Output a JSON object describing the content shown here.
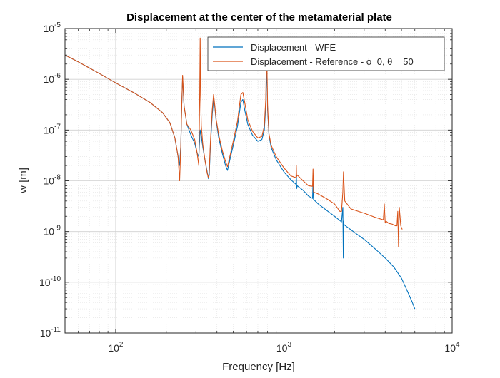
{
  "chart_data": {
    "type": "line",
    "title": "Displacement at the center of the metamaterial plate",
    "xlabel": "Frequency [Hz]",
    "ylabel": "w [m]",
    "xscale": "log",
    "yscale": "log",
    "xlim": [
      50,
      10000
    ],
    "ylim": [
      1e-11,
      1e-05
    ],
    "grid": true,
    "minor_grid": true,
    "legend_position": "top-right",
    "x_ticks": [
      {
        "value": 100,
        "base": "10",
        "exp": "2"
      },
      {
        "value": 1000,
        "base": "10",
        "exp": "3"
      },
      {
        "value": 10000,
        "base": "10",
        "exp": "4"
      }
    ],
    "y_ticks": [
      {
        "value": 1e-11,
        "base": "10",
        "exp": "-11"
      },
      {
        "value": 1e-10,
        "base": "10",
        "exp": "-10"
      },
      {
        "value": 1e-09,
        "base": "10",
        "exp": "-9"
      },
      {
        "value": 1e-08,
        "base": "10",
        "exp": "-8"
      },
      {
        "value": 1e-07,
        "base": "10",
        "exp": "-7"
      },
      {
        "value": 1e-06,
        "base": "10",
        "exp": "-6"
      },
      {
        "value": 1e-05,
        "base": "10",
        "exp": "-5"
      }
    ],
    "series": [
      {
        "name": "Displacement - WFE",
        "color": "#0072BD",
        "x": [
          50,
          60,
          80,
          100,
          130,
          160,
          190,
          210,
          225,
          235,
          240,
          244,
          247,
          250,
          255,
          265,
          280,
          295,
          305,
          312,
          318,
          322,
          330,
          340,
          350,
          356,
          360,
          366,
          375,
          382,
          388,
          395,
          410,
          430,
          450,
          462,
          475,
          500,
          530,
          555,
          570,
          585,
          610,
          650,
          700,
          740,
          765,
          780,
          790,
          800,
          815,
          840,
          900,
          1000,
          1100,
          1180,
          1185,
          1190,
          1200,
          1300,
          1400,
          1480,
          1490,
          1500,
          1600,
          1800,
          2000,
          2200,
          2240,
          2255,
          2262,
          2270,
          2290,
          2400,
          2700,
          3000,
          3500,
          4000,
          4500,
          5000,
          5500,
          5800,
          6000
        ],
        "y": [
          3e-06,
          2.2e-06,
          1.3e-06,
          8.5e-07,
          5.3e-07,
          3.5e-07,
          2.2e-07,
          1.4e-07,
          7e-08,
          3e-08,
          2e-08,
          5e-08,
          3e-07,
          1.1e-06,
          3e-07,
          1.3e-07,
          8e-08,
          5.5e-08,
          3.5e-08,
          3e-08,
          1e-07,
          8e-08,
          4.5e-08,
          2.5e-08,
          1.5e-08,
          1.1e-08,
          1.3e-08,
          5e-08,
          2e-07,
          4e-07,
          3e-07,
          1.6e-07,
          7e-08,
          3.5e-08,
          2e-08,
          1.6e-08,
          2.4e-08,
          5e-08,
          1.2e-07,
          3.5e-07,
          4e-07,
          2.5e-07,
          1.3e-07,
          8e-08,
          6e-08,
          6.5e-08,
          1e-07,
          3e-07,
          2e-06,
          2.5e-07,
          8e-08,
          4.5e-08,
          2.6e-08,
          1.5e-08,
          1.05e-08,
          8.5e-09,
          1.8e-08,
          7e-09,
          8e-09,
          6.5e-09,
          5e-09,
          4.5e-09,
          1e-08,
          4.3e-09,
          3.5e-09,
          2.6e-09,
          2e-09,
          1.55e-09,
          3e-09,
          3e-10,
          1.6e-09,
          1.4e-09,
          1.35e-09,
          1.2e-09,
          9e-10,
          7e-10,
          4.5e-10,
          3e-10,
          2e-10,
          1.2e-10,
          6e-11,
          4e-11,
          3e-11
        ]
      },
      {
        "name": "Displacement - Reference - ϕ=0, θ = 50",
        "color": "#D95319",
        "x": [
          50,
          60,
          80,
          100,
          130,
          160,
          190,
          210,
          225,
          235,
          240,
          244,
          247,
          250,
          255,
          265,
          280,
          295,
          305,
          312,
          316,
          318,
          320,
          323,
          330,
          340,
          350,
          356,
          360,
          366,
          375,
          382,
          388,
          395,
          410,
          430,
          450,
          462,
          475,
          500,
          530,
          555,
          570,
          585,
          610,
          650,
          700,
          740,
          765,
          780,
          790,
          800,
          815,
          840,
          900,
          1000,
          1100,
          1180,
          1185,
          1190,
          1200,
          1300,
          1400,
          1480,
          1490,
          1500,
          1600,
          1800,
          2000,
          2150,
          2200,
          2240,
          2260,
          2300,
          2500,
          3000,
          3500,
          3900,
          3950,
          4000,
          4050,
          4200,
          4400,
          4600,
          4700,
          4750,
          4800,
          4850,
          4950,
          5050
        ],
        "y": [
          3e-06,
          2.2e-06,
          1.3e-06,
          8.5e-07,
          5.3e-07,
          3.5e-07,
          2.2e-07,
          1.4e-07,
          7e-08,
          3e-08,
          1e-08,
          5e-08,
          3e-07,
          1.2e-06,
          3e-07,
          1.3e-07,
          1e-07,
          6.5e-08,
          3.5e-08,
          2e-08,
          5e-07,
          6.5e-06,
          5e-07,
          1.2e-07,
          5e-08,
          2.5e-08,
          1.4e-08,
          1.15e-08,
          1.5e-08,
          6e-08,
          2.5e-07,
          5e-07,
          3.2e-07,
          1.7e-07,
          8e-08,
          4e-08,
          2.4e-08,
          1.9e-08,
          2.8e-08,
          6e-08,
          1.5e-07,
          5e-07,
          5.5e-07,
          3.5e-07,
          1.6e-07,
          9.5e-08,
          7e-08,
          7.5e-08,
          1.2e-07,
          4e-07,
          4e-06,
          3e-07,
          8.5e-08,
          5e-08,
          3e-08,
          1.8e-08,
          1.25e-08,
          1.15e-08,
          2e-08,
          1.2e-08,
          1.3e-08,
          1e-08,
          8e-09,
          7.8e-09,
          1.7e-08,
          6e-09,
          5.5e-09,
          4.4e-09,
          3.5e-09,
          2.5e-09,
          2.5e-09,
          6e-09,
          1.5e-08,
          4e-09,
          2.8e-09,
          2.3e-09,
          1.9e-09,
          1.7e-09,
          3.5e-09,
          1.5e-09,
          1.6e-09,
          1.45e-09,
          1.4e-09,
          1.3e-09,
          1.3e-09,
          2.5e-09,
          5e-10,
          3e-09,
          1.3e-09,
          1.1e-09
        ]
      }
    ]
  }
}
